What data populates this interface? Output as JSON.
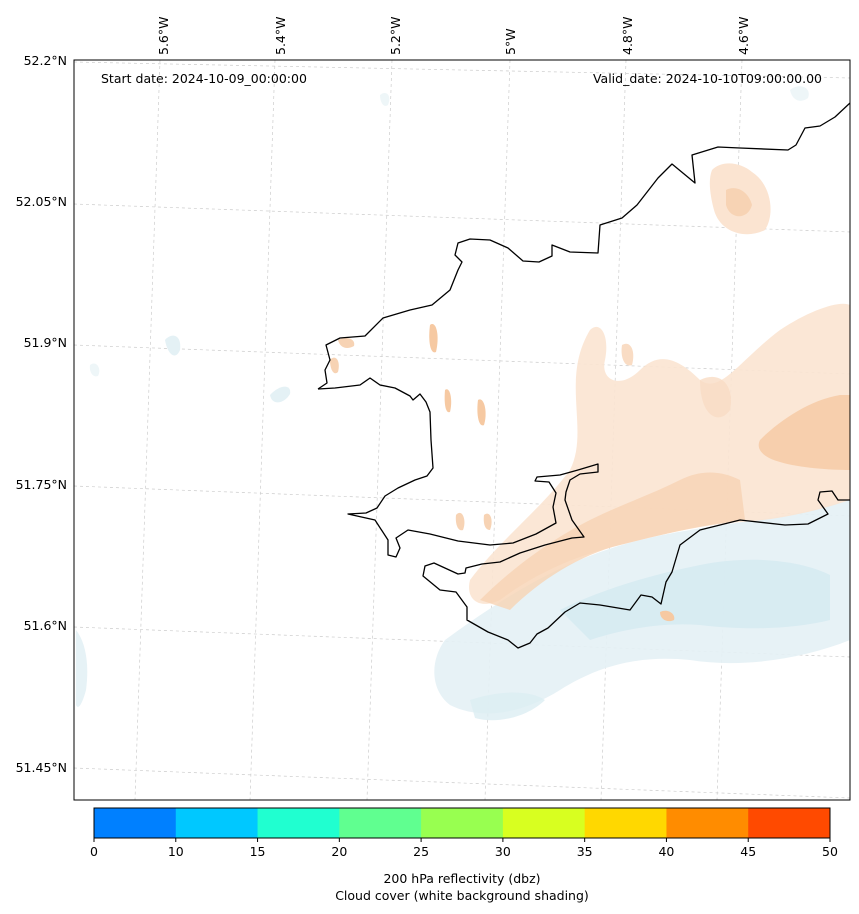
{
  "header": {
    "start_date": "Start date: 2024-10-09_00:00:00",
    "valid_date": "Valid_date: 2024-10-10T09:00:00.00"
  },
  "axes": {
    "lon_labels": [
      "5.6°W",
      "5.4°W",
      "5.2°W",
      "5°W",
      "4.8°W",
      "4.6°W"
    ],
    "lat_labels": [
      "52.2°N",
      "52.05°N",
      "51.9°N",
      "51.75°N",
      "51.6°N",
      "51.45°N"
    ]
  },
  "colorbar": {
    "ticks": [
      "0",
      "10",
      "15",
      "20",
      "25",
      "30",
      "35",
      "40",
      "45",
      "50"
    ],
    "colors": [
      "#0080ff",
      "#00c8ff",
      "#20ffd0",
      "#60ff90",
      "#98ff50",
      "#d8ff20",
      "#ffd800",
      "#ff8c00",
      "#ff4a00"
    ],
    "label_line1": "200 hPa reflectivity (dbz)",
    "label_line2": "Cloud cover (white background shading)"
  },
  "styling": {
    "coastline_color": "#000000",
    "gridline_color": "#cccccc",
    "cloud_shade_color": "#cfe6ee",
    "reflectivity_shade_color": "#f6c9a2"
  }
}
